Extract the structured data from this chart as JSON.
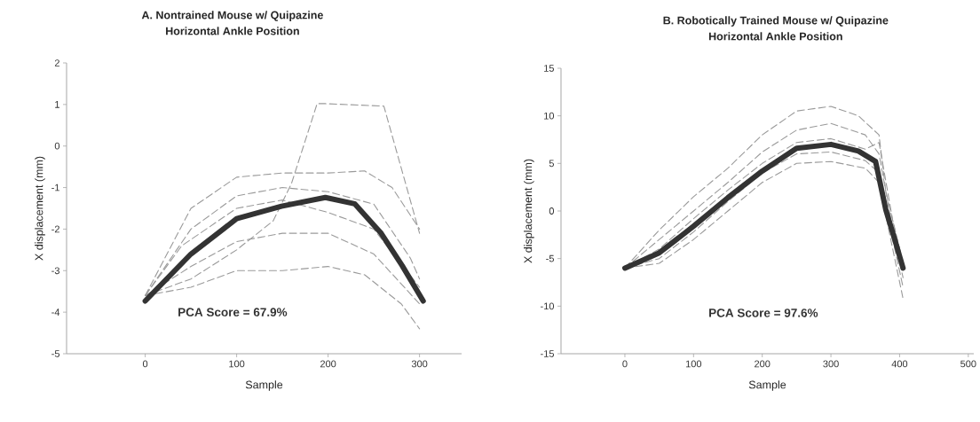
{
  "chart_data": [
    {
      "type": "line",
      "title": "A. Nontrained Mouse w/ Quipazine",
      "subtitle": "Horizontal Ankle Position",
      "xlabel": "Sample",
      "ylabel": "X displacement (mm)",
      "xlim": [
        -86,
        346
      ],
      "ylim": [
        -5,
        2
      ],
      "xticks": [
        0,
        100,
        200,
        300
      ],
      "yticks": [
        -5,
        -4,
        -3,
        -2,
        -1,
        0,
        1,
        2
      ],
      "annotations": [
        "PCA Score = 67.9%"
      ],
      "series": [
        {
          "color": "#9a9a9a",
          "line_style": "dashed",
          "x": [
            0,
            50,
            100,
            140,
            160,
            188,
            197,
            261,
            300
          ],
          "values": [
            -3.6,
            -3.2,
            -2.5,
            -1.8,
            -0.9,
            1.02,
            1.02,
            0.96,
            -2.1
          ]
        },
        {
          "color": "#9a9a9a",
          "line_style": "dashed",
          "x": [
            0,
            50,
            100,
            150,
            200,
            240,
            270,
            300
          ],
          "values": [
            -3.6,
            -1.5,
            -0.75,
            -0.65,
            -0.65,
            -0.6,
            -1.0,
            -2.0
          ]
        },
        {
          "color": "#9a9a9a",
          "line_style": "dashed",
          "x": [
            0,
            50,
            100,
            150,
            200,
            240,
            280,
            300
          ],
          "values": [
            -3.6,
            -3.4,
            -3.0,
            -3.0,
            -2.9,
            -3.1,
            -3.8,
            -4.4
          ]
        },
        {
          "color": "#9a9a9a",
          "line_style": "dashed",
          "x": [
            0,
            50,
            100,
            150,
            200,
            250,
            300
          ],
          "values": [
            -3.6,
            -2.9,
            -2.3,
            -2.1,
            -2.1,
            -2.6,
            -3.8
          ]
        },
        {
          "color": "#9a9a9a",
          "line_style": "dashed",
          "x": [
            0,
            50,
            100,
            150,
            200,
            250,
            290,
            300
          ],
          "values": [
            -3.6,
            -2.0,
            -1.2,
            -1.0,
            -1.1,
            -1.4,
            -2.7,
            -3.2
          ]
        },
        {
          "color": "#9a9a9a",
          "line_style": "dashed",
          "x": [
            0,
            40,
            100,
            150,
            200,
            250,
            300
          ],
          "values": [
            -3.6,
            -2.4,
            -1.5,
            -1.3,
            -1.6,
            -2.0,
            -3.4
          ]
        },
        {
          "color": "#333333",
          "line_style": "solid",
          "x": [
            0,
            50,
            100,
            149,
            197,
            229,
            258,
            281,
            304
          ],
          "values": [
            -3.73,
            -2.6,
            -1.75,
            -1.45,
            -1.24,
            -1.39,
            -2.1,
            -2.88,
            -3.73
          ]
        }
      ]
    },
    {
      "type": "line",
      "title": "B. Robotically Trained Mouse w/ Quipazine",
      "subtitle": "Horizontal Ankle Position",
      "xlabel": "Sample",
      "ylabel": "X displacement (mm)",
      "xlim": [
        -93,
        508
      ],
      "ylim": [
        -15,
        15
      ],
      "xticks": [
        0,
        100,
        200,
        300,
        400,
        500
      ],
      "yticks": [
        -15,
        -10,
        -5,
        0,
        5,
        10,
        15
      ],
      "annotations": [
        "PCA Score = 97.6%"
      ],
      "series": [
        {
          "color": "#9a9a9a",
          "line_style": "dashed",
          "x": [
            0,
            50,
            100,
            150,
            200,
            250,
            300,
            340,
            370,
            380,
            400,
            405
          ],
          "values": [
            -6,
            -2,
            1.5,
            4.5,
            8,
            10.5,
            11,
            10,
            8,
            2,
            -4,
            -6
          ]
        },
        {
          "color": "#9a9a9a",
          "line_style": "dashed",
          "x": [
            0,
            50,
            100,
            150,
            200,
            250,
            300,
            350,
            370,
            390,
            405
          ],
          "values": [
            -6,
            -3,
            0,
            3,
            6.2,
            8.5,
            9.2,
            8,
            6,
            -2,
            -7
          ]
        },
        {
          "color": "#9a9a9a",
          "line_style": "dashed",
          "x": [
            0,
            50,
            100,
            150,
            200,
            250,
            300,
            350,
            370,
            390,
            405
          ],
          "values": [
            -6,
            -5.5,
            -3,
            0,
            3,
            5,
            5.2,
            4.5,
            3,
            -4,
            -9.2
          ]
        },
        {
          "color": "#9a9a9a",
          "line_style": "dashed",
          "x": [
            0,
            50,
            100,
            150,
            200,
            250,
            300,
            350,
            370,
            390,
            405
          ],
          "values": [
            -6,
            -5,
            -2.2,
            1,
            4,
            6,
            6.2,
            5.3,
            4,
            -3,
            -8
          ]
        },
        {
          "color": "#9a9a9a",
          "line_style": "dashed",
          "x": [
            0,
            50,
            100,
            150,
            200,
            250,
            300,
            350,
            370,
            390,
            405
          ],
          "values": [
            -6,
            -4,
            -0.8,
            2.2,
            5,
            7.2,
            7.6,
            6.5,
            7.2,
            -1,
            -5.5
          ]
        },
        {
          "color": "#333333",
          "line_style": "solid",
          "x": [
            0,
            50,
            100,
            150,
            200,
            250,
            300,
            340,
            365,
            380,
            395,
            405
          ],
          "values": [
            -6,
            -4.4,
            -1.6,
            1.4,
            4.2,
            6.6,
            7.0,
            6.3,
            5.2,
            0.1,
            -3.5,
            -6
          ]
        }
      ]
    }
  ]
}
